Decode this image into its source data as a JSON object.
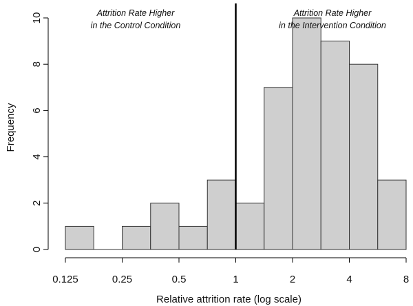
{
  "chart_data": {
    "type": "bar",
    "title": "",
    "xlabel": "Relative attrition rate (log scale)",
    "ylabel": "Frequency",
    "x_scale": "log2",
    "x_ticks": [
      0.125,
      0.25,
      0.5,
      1,
      2,
      4,
      8
    ],
    "x_tick_labels": [
      "0.125",
      "0.25",
      "0.5",
      "1",
      "2",
      "4",
      "8"
    ],
    "y_ticks": [
      0,
      2,
      4,
      6,
      8,
      10
    ],
    "y_tick_labels": [
      "0",
      "2",
      "4",
      "6",
      "8",
      "10"
    ],
    "ylim": [
      0,
      10
    ],
    "xlim": [
      0.125,
      8
    ],
    "bin_width_log2": 0.5,
    "bins": [
      {
        "from": 0.125,
        "to": 0.177,
        "count": 1
      },
      {
        "from": 0.177,
        "to": 0.25,
        "count": 0
      },
      {
        "from": 0.25,
        "to": 0.354,
        "count": 1
      },
      {
        "from": 0.354,
        "to": 0.5,
        "count": 2
      },
      {
        "from": 0.5,
        "to": 0.707,
        "count": 1
      },
      {
        "from": 0.707,
        "to": 1.0,
        "count": 3
      },
      {
        "from": 1.0,
        "to": 1.414,
        "count": 2
      },
      {
        "from": 1.414,
        "to": 2.0,
        "count": 7
      },
      {
        "from": 2.0,
        "to": 2.828,
        "count": 10
      },
      {
        "from": 2.828,
        "to": 4.0,
        "count": 9
      },
      {
        "from": 4.0,
        "to": 5.657,
        "count": 8
      },
      {
        "from": 5.657,
        "to": 8.0,
        "count": 3
      }
    ],
    "reference_line": {
      "x": 1,
      "color": "#000000"
    },
    "bar_fill": "#cfcfcf",
    "bar_stroke": "#333333",
    "grid": false,
    "legend": "none",
    "annotations": [
      {
        "side": "left",
        "lines": [
          "Attrition Rate Higher",
          "in the Control Condition"
        ]
      },
      {
        "side": "right",
        "lines": [
          "Attrition Rate Higher",
          "in the Intervention Condition"
        ]
      }
    ]
  }
}
